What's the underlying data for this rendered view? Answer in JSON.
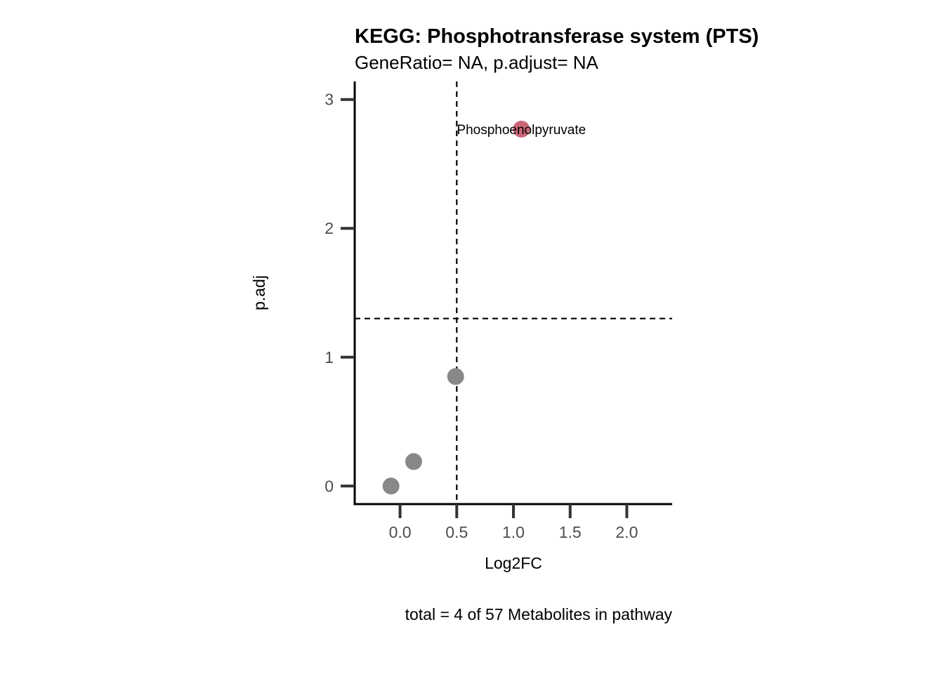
{
  "chart_data": {
    "type": "scatter",
    "title": "KEGG: Phosphotransferase system (PTS)",
    "subtitle": "GeneRatio= NA, p.adjust= NA",
    "xlabel": "Log2FC",
    "ylabel": "p.adj",
    "caption": "total = 4 of 57 Metabolites in pathway",
    "xlim": [
      -0.4,
      2.4
    ],
    "ylim": [
      -0.14,
      3.14
    ],
    "x_ticks": [
      0.0,
      0.5,
      1.0,
      1.5,
      2.0
    ],
    "x_tick_labels": [
      "0.0",
      "0.5",
      "1.0",
      "1.5",
      "2.0"
    ],
    "y_ticks": [
      0,
      1,
      2,
      3
    ],
    "y_tick_labels": [
      "0",
      "1",
      "2",
      "3"
    ],
    "reference_lines": {
      "vertical_x": 0.5,
      "horizontal_y": 1.3
    },
    "points": [
      {
        "x": -0.08,
        "y": 0.0,
        "color": "#888888",
        "label": ""
      },
      {
        "x": 0.12,
        "y": 0.19,
        "color": "#888888",
        "label": ""
      },
      {
        "x": 0.49,
        "y": 0.85,
        "color": "#888888",
        "label": ""
      },
      {
        "x": 1.07,
        "y": 2.77,
        "color": "#CC6677",
        "label": "Phosphoenolpyruvate"
      }
    ],
    "grid": false
  }
}
